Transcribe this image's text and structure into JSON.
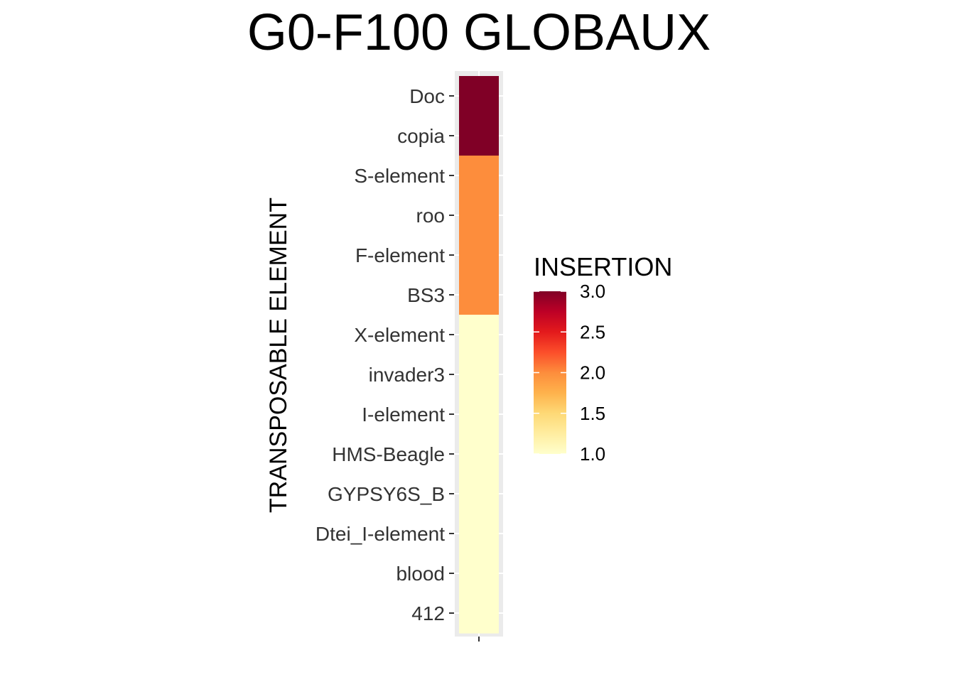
{
  "chart_data": {
    "type": "heatmap",
    "title": "G0-F100 GLOBAUX",
    "xlabel": "",
    "ylabel": "TRANSPOSABLE ELEMENT",
    "x_categories": [
      ""
    ],
    "y_categories": [
      "Doc",
      "copia",
      "S-element",
      "roo",
      "F-element",
      "BS3",
      "X-element",
      "invader3",
      "I-element",
      "HMS-Beagle",
      "GYPSY6S_B",
      "Dtei_I-element",
      "blood",
      "412"
    ],
    "values": [
      3,
      3,
      2,
      2,
      2,
      2,
      1,
      1,
      1,
      1,
      1,
      1,
      1,
      1
    ],
    "grid": true,
    "legend": {
      "title": "INSERTION",
      "position": "right",
      "min": 1.0,
      "max": 3.0,
      "ticks": [
        "1.0",
        "1.5",
        "2.0",
        "2.5",
        "3.0"
      ],
      "colors": [
        "#FFFFCC",
        "#FFEDA0",
        "#FED976",
        "#FEB24C",
        "#FD8D3C",
        "#FC4E2A",
        "#E31A1C",
        "#BD0026",
        "#800026"
      ]
    }
  }
}
